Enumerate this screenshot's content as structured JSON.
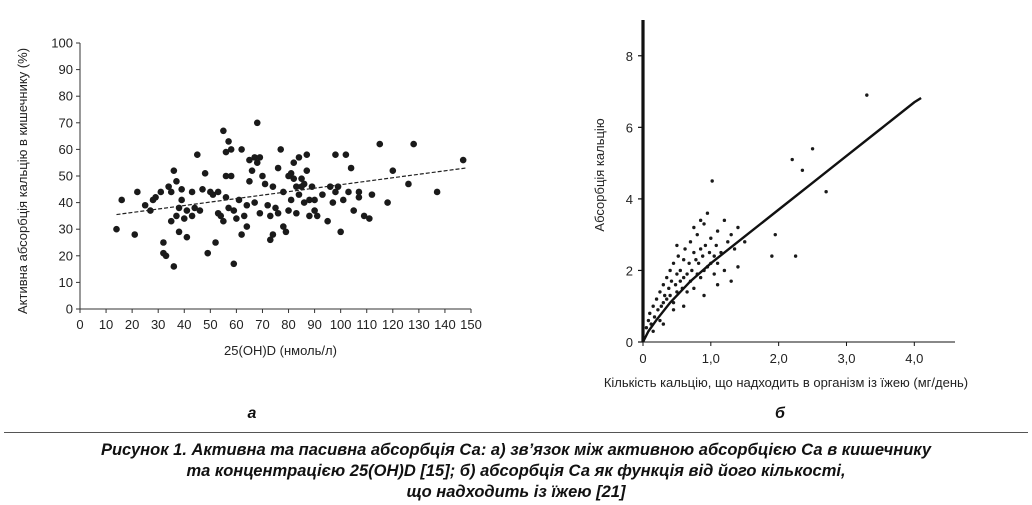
{
  "panel_a_label": "а",
  "panel_b_label": "б",
  "caption": {
    "line1": "Рисунок 1. Активна та пасивна абсорбція Са: а) зв’язок між активною абсорбцією Са в кишечнику",
    "line2": "та концентрацією 25(ОН)D [15]; б) абсорбція Са як функція від його кількості,",
    "line3": "що надходить із їжею [21]"
  },
  "chart_data": [
    {
      "type": "scatter",
      "panel": "а",
      "xlabel": "25(OH)D (нмоль/л)",
      "ylabel": "Активна абсорбція кальцію в кишечнику (%)",
      "xlim": [
        0,
        150
      ],
      "ylim": [
        0,
        100
      ],
      "xticks": [
        0,
        10,
        20,
        30,
        40,
        50,
        60,
        70,
        80,
        90,
        100,
        110,
        120,
        130,
        140,
        150
      ],
      "yticks": [
        0,
        10,
        20,
        30,
        40,
        50,
        60,
        70,
        80,
        90,
        100
      ],
      "grid": false,
      "legend": "none",
      "point_color": "#1a1a1a",
      "trend_line": {
        "style": "dashed",
        "x": [
          14,
          148
        ],
        "y": [
          35.5,
          53
        ]
      },
      "points": [
        [
          14,
          30
        ],
        [
          16,
          41
        ],
        [
          21,
          28
        ],
        [
          22,
          44
        ],
        [
          25,
          39
        ],
        [
          27,
          37
        ],
        [
          28,
          41
        ],
        [
          29,
          42
        ],
        [
          31,
          44
        ],
        [
          32,
          21
        ],
        [
          32,
          25
        ],
        [
          33,
          20
        ],
        [
          34,
          46
        ],
        [
          35,
          44
        ],
        [
          35,
          33
        ],
        [
          36,
          52
        ],
        [
          36,
          16
        ],
        [
          37,
          48
        ],
        [
          37,
          35
        ],
        [
          38,
          29
        ],
        [
          38,
          38
        ],
        [
          39,
          41
        ],
        [
          39,
          45
        ],
        [
          40,
          34
        ],
        [
          41,
          27
        ],
        [
          41,
          37
        ],
        [
          43,
          44
        ],
        [
          43,
          35
        ],
        [
          44,
          38
        ],
        [
          45,
          58
        ],
        [
          46,
          37
        ],
        [
          47,
          45
        ],
        [
          48,
          51
        ],
        [
          49,
          21
        ],
        [
          50,
          44
        ],
        [
          51,
          43
        ],
        [
          52,
          25
        ],
        [
          53,
          36
        ],
        [
          53,
          44
        ],
        [
          54,
          35
        ],
        [
          55,
          67
        ],
        [
          55,
          33
        ],
        [
          56,
          59
        ],
        [
          56,
          42
        ],
        [
          56,
          50
        ],
        [
          57,
          38
        ],
        [
          57,
          63
        ],
        [
          58,
          60
        ],
        [
          58,
          50
        ],
        [
          59,
          17
        ],
        [
          59,
          37
        ],
        [
          60,
          34
        ],
        [
          61,
          41
        ],
        [
          62,
          28
        ],
        [
          62,
          60
        ],
        [
          63,
          35
        ],
        [
          64,
          39
        ],
        [
          64,
          31
        ],
        [
          65,
          56
        ],
        [
          65,
          48
        ],
        [
          66,
          52
        ],
        [
          67,
          40
        ],
        [
          67,
          57
        ],
        [
          68,
          70
        ],
        [
          68,
          55
        ],
        [
          69,
          36
        ],
        [
          69,
          57
        ],
        [
          70,
          50
        ],
        [
          71,
          47
        ],
        [
          72,
          39
        ],
        [
          73,
          35
        ],
        [
          73,
          26
        ],
        [
          74,
          46
        ],
        [
          74,
          28
        ],
        [
          75,
          38
        ],
        [
          76,
          36
        ],
        [
          76,
          53
        ],
        [
          77,
          60
        ],
        [
          78,
          31
        ],
        [
          78,
          44
        ],
        [
          79,
          29
        ],
        [
          80,
          50
        ],
        [
          80,
          37
        ],
        [
          81,
          51
        ],
        [
          81,
          41
        ],
        [
          82,
          49
        ],
        [
          82,
          55
        ],
        [
          83,
          46
        ],
        [
          83,
          36
        ],
        [
          84,
          43
        ],
        [
          84,
          57
        ],
        [
          85,
          46
        ],
        [
          85,
          49
        ],
        [
          86,
          47
        ],
        [
          86,
          40
        ],
        [
          87,
          52
        ],
        [
          87,
          58
        ],
        [
          88,
          35
        ],
        [
          88,
          41
        ],
        [
          89,
          46
        ],
        [
          90,
          37
        ],
        [
          90,
          41
        ],
        [
          91,
          35
        ],
        [
          93,
          43
        ],
        [
          95,
          33
        ],
        [
          96,
          46
        ],
        [
          97,
          40
        ],
        [
          98,
          44
        ],
        [
          98,
          58
        ],
        [
          99,
          46
        ],
        [
          100,
          29
        ],
        [
          101,
          41
        ],
        [
          102,
          58
        ],
        [
          103,
          44
        ],
        [
          104,
          53
        ],
        [
          105,
          37
        ],
        [
          107,
          42
        ],
        [
          107,
          44
        ],
        [
          109,
          35
        ],
        [
          111,
          34
        ],
        [
          112,
          43
        ],
        [
          115,
          62
        ],
        [
          118,
          40
        ],
        [
          120,
          52
        ],
        [
          126,
          47
        ],
        [
          128,
          62
        ],
        [
          137,
          44
        ],
        [
          147,
          56
        ]
      ]
    },
    {
      "type": "scatter",
      "panel": "б",
      "xlabel": "Кількість кальцію, що надходить в організм із їжею (мг/день)",
      "ylabel": "Абсорбція кальцію",
      "xlim": [
        0,
        4.6
      ],
      "ylim": [
        0,
        9
      ],
      "xtick_values": [
        0,
        1,
        2,
        3,
        4
      ],
      "xtick_labels": [
        "0",
        "1,0",
        "2,0",
        "3,0",
        "4,0"
      ],
      "yticks": [
        0,
        2,
        4,
        6,
        8
      ],
      "grid": false,
      "legend": "none",
      "point_color": "#1a1a1a",
      "fit_line": {
        "x": [
          0,
          0.08,
          0.2,
          0.4,
          0.7,
          1.0,
          1.5,
          2.0,
          2.5,
          3.0,
          3.5,
          4.0,
          4.1
        ],
        "y": [
          0,
          0.3,
          0.62,
          1.1,
          1.7,
          2.2,
          2.95,
          3.7,
          4.45,
          5.2,
          5.95,
          6.7,
          6.82
        ]
      },
      "points": [
        [
          0.05,
          0.4
        ],
        [
          0.08,
          0.6
        ],
        [
          0.1,
          0.8
        ],
        [
          0.12,
          0.5
        ],
        [
          0.15,
          1.0
        ],
        [
          0.17,
          0.7
        ],
        [
          0.2,
          1.2
        ],
        [
          0.22,
          0.9
        ],
        [
          0.25,
          1.4
        ],
        [
          0.27,
          1.0
        ],
        [
          0.3,
          1.6
        ],
        [
          0.3,
          1.1
        ],
        [
          0.32,
          1.3
        ],
        [
          0.35,
          1.8
        ],
        [
          0.35,
          1.2
        ],
        [
          0.38,
          1.5
        ],
        [
          0.4,
          2.0
        ],
        [
          0.4,
          1.3
        ],
        [
          0.42,
          1.7
        ],
        [
          0.45,
          1.1
        ],
        [
          0.45,
          2.2
        ],
        [
          0.48,
          1.6
        ],
        [
          0.5,
          1.9
        ],
        [
          0.5,
          1.4
        ],
        [
          0.52,
          2.4
        ],
        [
          0.55,
          1.7
        ],
        [
          0.55,
          2.0
        ],
        [
          0.58,
          1.5
        ],
        [
          0.6,
          2.3
        ],
        [
          0.6,
          1.8
        ],
        [
          0.62,
          2.6
        ],
        [
          0.65,
          1.9
        ],
        [
          0.65,
          1.4
        ],
        [
          0.68,
          2.2
        ],
        [
          0.7,
          2.8
        ],
        [
          0.7,
          1.7
        ],
        [
          0.72,
          2.0
        ],
        [
          0.75,
          2.5
        ],
        [
          0.75,
          1.5
        ],
        [
          0.78,
          2.3
        ],
        [
          0.8,
          3.0
        ],
        [
          0.8,
          1.9
        ],
        [
          0.82,
          2.2
        ],
        [
          0.85,
          2.6
        ],
        [
          0.85,
          1.8
        ],
        [
          0.88,
          2.4
        ],
        [
          0.9,
          3.3
        ],
        [
          0.9,
          2.0
        ],
        [
          0.92,
          2.7
        ],
        [
          0.95,
          2.1
        ],
        [
          0.95,
          3.6
        ],
        [
          0.98,
          2.5
        ],
        [
          1.0,
          2.2
        ],
        [
          1.0,
          2.9
        ],
        [
          1.02,
          4.5
        ],
        [
          1.05,
          2.4
        ],
        [
          1.05,
          1.9
        ],
        [
          1.08,
          2.7
        ],
        [
          1.1,
          3.1
        ],
        [
          1.1,
          2.2
        ],
        [
          1.15,
          2.5
        ],
        [
          1.2,
          3.4
        ],
        [
          1.2,
          2.0
        ],
        [
          1.25,
          2.8
        ],
        [
          1.3,
          3.0
        ],
        [
          1.3,
          1.7
        ],
        [
          1.35,
          2.6
        ],
        [
          1.4,
          3.2
        ],
        [
          1.4,
          2.1
        ],
        [
          1.5,
          2.8
        ],
        [
          1.9,
          2.4
        ],
        [
          1.95,
          3.0
        ],
        [
          2.2,
          5.1
        ],
        [
          2.25,
          2.4
        ],
        [
          2.35,
          4.8
        ],
        [
          2.5,
          5.4
        ],
        [
          2.7,
          4.2
        ],
        [
          3.3,
          6.9
        ],
        [
          0.15,
          0.3
        ],
        [
          0.25,
          0.6
        ],
        [
          0.45,
          0.9
        ],
        [
          0.6,
          1.0
        ],
        [
          0.3,
          0.5
        ],
        [
          0.9,
          1.3
        ],
        [
          0.75,
          3.2
        ],
        [
          1.1,
          1.6
        ],
        [
          0.5,
          2.7
        ],
        [
          0.85,
          3.4
        ]
      ]
    }
  ]
}
